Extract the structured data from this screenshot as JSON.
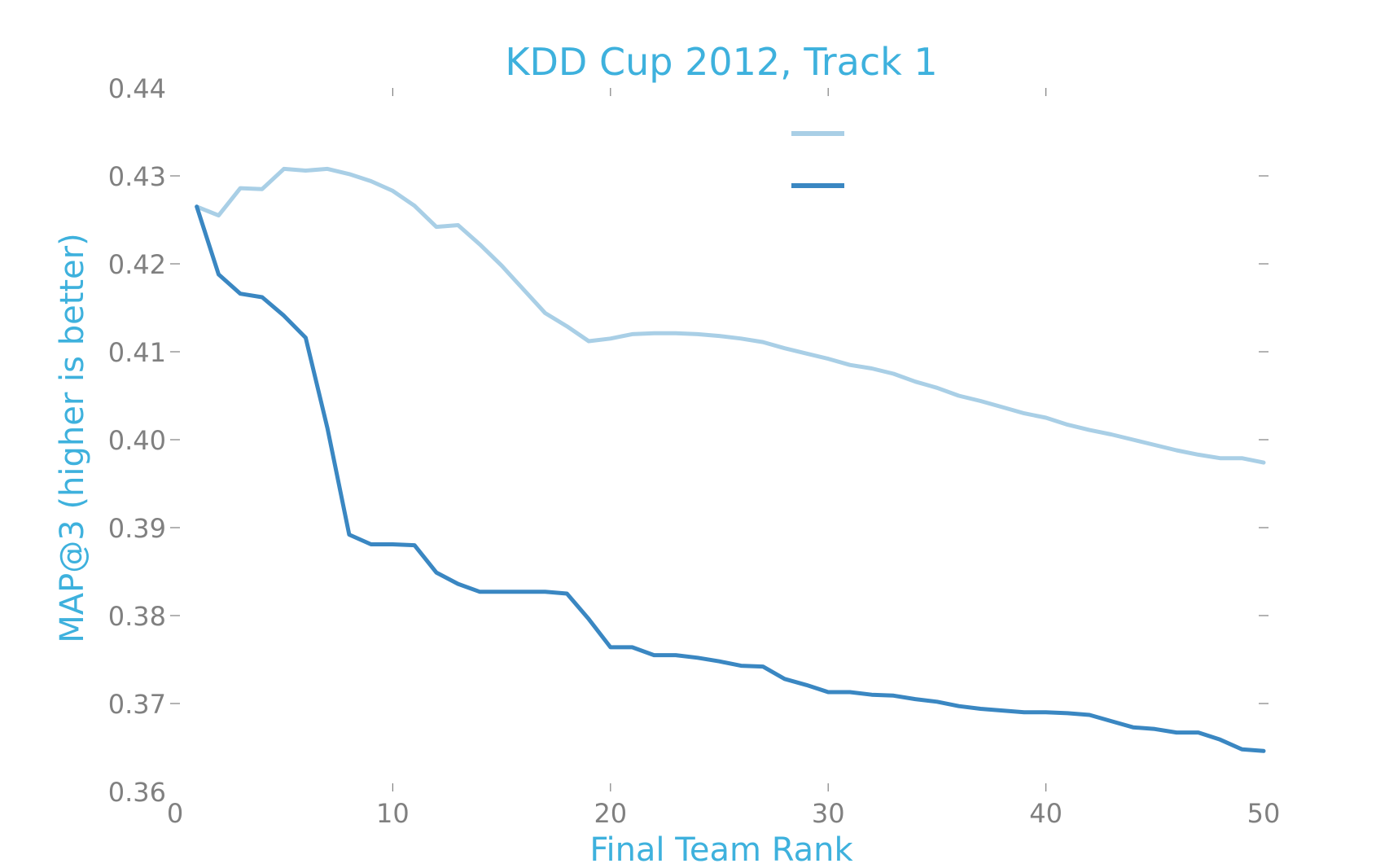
{
  "chart_data": {
    "type": "line",
    "title": "KDD Cup 2012, Track 1",
    "xlabel": "Final Team Rank",
    "ylabel": "MAP@3 (higher is better)",
    "xlim": [
      0,
      50
    ],
    "ylim": [
      0.36,
      0.44
    ],
    "xticks": [
      0,
      10,
      20,
      30,
      40,
      50
    ],
    "xtick_labels": [
      "0",
      "10",
      "20",
      "30",
      "40",
      "50"
    ],
    "yticks": [
      0.36,
      0.37,
      0.38,
      0.39,
      0.4,
      0.41,
      0.42,
      0.43,
      0.44
    ],
    "ytick_labels": [
      "0.36",
      "0.37",
      "0.38",
      "0.39",
      "0.40",
      "0.41",
      "0.42",
      "0.43",
      "0.44"
    ],
    "grid": false,
    "legend_position": "top-center",
    "x": [
      1,
      2,
      3,
      4,
      5,
      6,
      7,
      8,
      9,
      10,
      11,
      12,
      13,
      14,
      15,
      16,
      17,
      18,
      19,
      20,
      21,
      22,
      23,
      24,
      25,
      26,
      27,
      28,
      29,
      30,
      31,
      32,
      33,
      34,
      35,
      36,
      37,
      38,
      39,
      40,
      41,
      42,
      43,
      44,
      45,
      46,
      47,
      48,
      49,
      50
    ],
    "series": [
      {
        "color": "#a9cfe6",
        "values": [
          0.4265,
          0.4255,
          0.4286,
          0.4285,
          0.4308,
          0.4306,
          0.4308,
          0.4302,
          0.4294,
          0.4283,
          0.4266,
          0.4242,
          0.4244,
          0.4222,
          0.4198,
          0.4171,
          0.4144,
          0.4129,
          0.4112,
          0.4115,
          0.412,
          0.4121,
          0.4121,
          0.412,
          0.4118,
          0.4115,
          0.4111,
          0.4104,
          0.4098,
          0.4092,
          0.4085,
          0.4081,
          0.4075,
          0.4066,
          0.4059,
          0.405,
          0.4044,
          0.4037,
          0.403,
          0.4025,
          0.4017,
          0.4011,
          0.4006,
          0.4,
          0.3994,
          0.3988,
          0.3983,
          0.3979,
          0.3979,
          0.3974
        ]
      },
      {
        "color": "#3a87c2",
        "values": [
          0.4265,
          0.4188,
          0.4166,
          0.4162,
          0.4141,
          0.4116,
          0.4013,
          0.3892,
          0.3881,
          0.3881,
          0.388,
          0.3849,
          0.3836,
          0.3827,
          0.3827,
          0.3827,
          0.3827,
          0.3825,
          0.3796,
          0.3764,
          0.3764,
          0.3755,
          0.3755,
          0.3752,
          0.3748,
          0.3743,
          0.3742,
          0.3728,
          0.3721,
          0.3713,
          0.3713,
          0.371,
          0.3709,
          0.3705,
          0.3702,
          0.3697,
          0.3694,
          0.3692,
          0.369,
          0.369,
          0.3689,
          0.3687,
          0.368,
          0.3673,
          0.3671,
          0.3667,
          0.3667,
          0.3659,
          0.3648,
          0.3646
        ]
      }
    ],
    "colors": {
      "title": "#3eb1dd",
      "axis_label": "#3eb1dd",
      "tick": "#808080"
    }
  }
}
